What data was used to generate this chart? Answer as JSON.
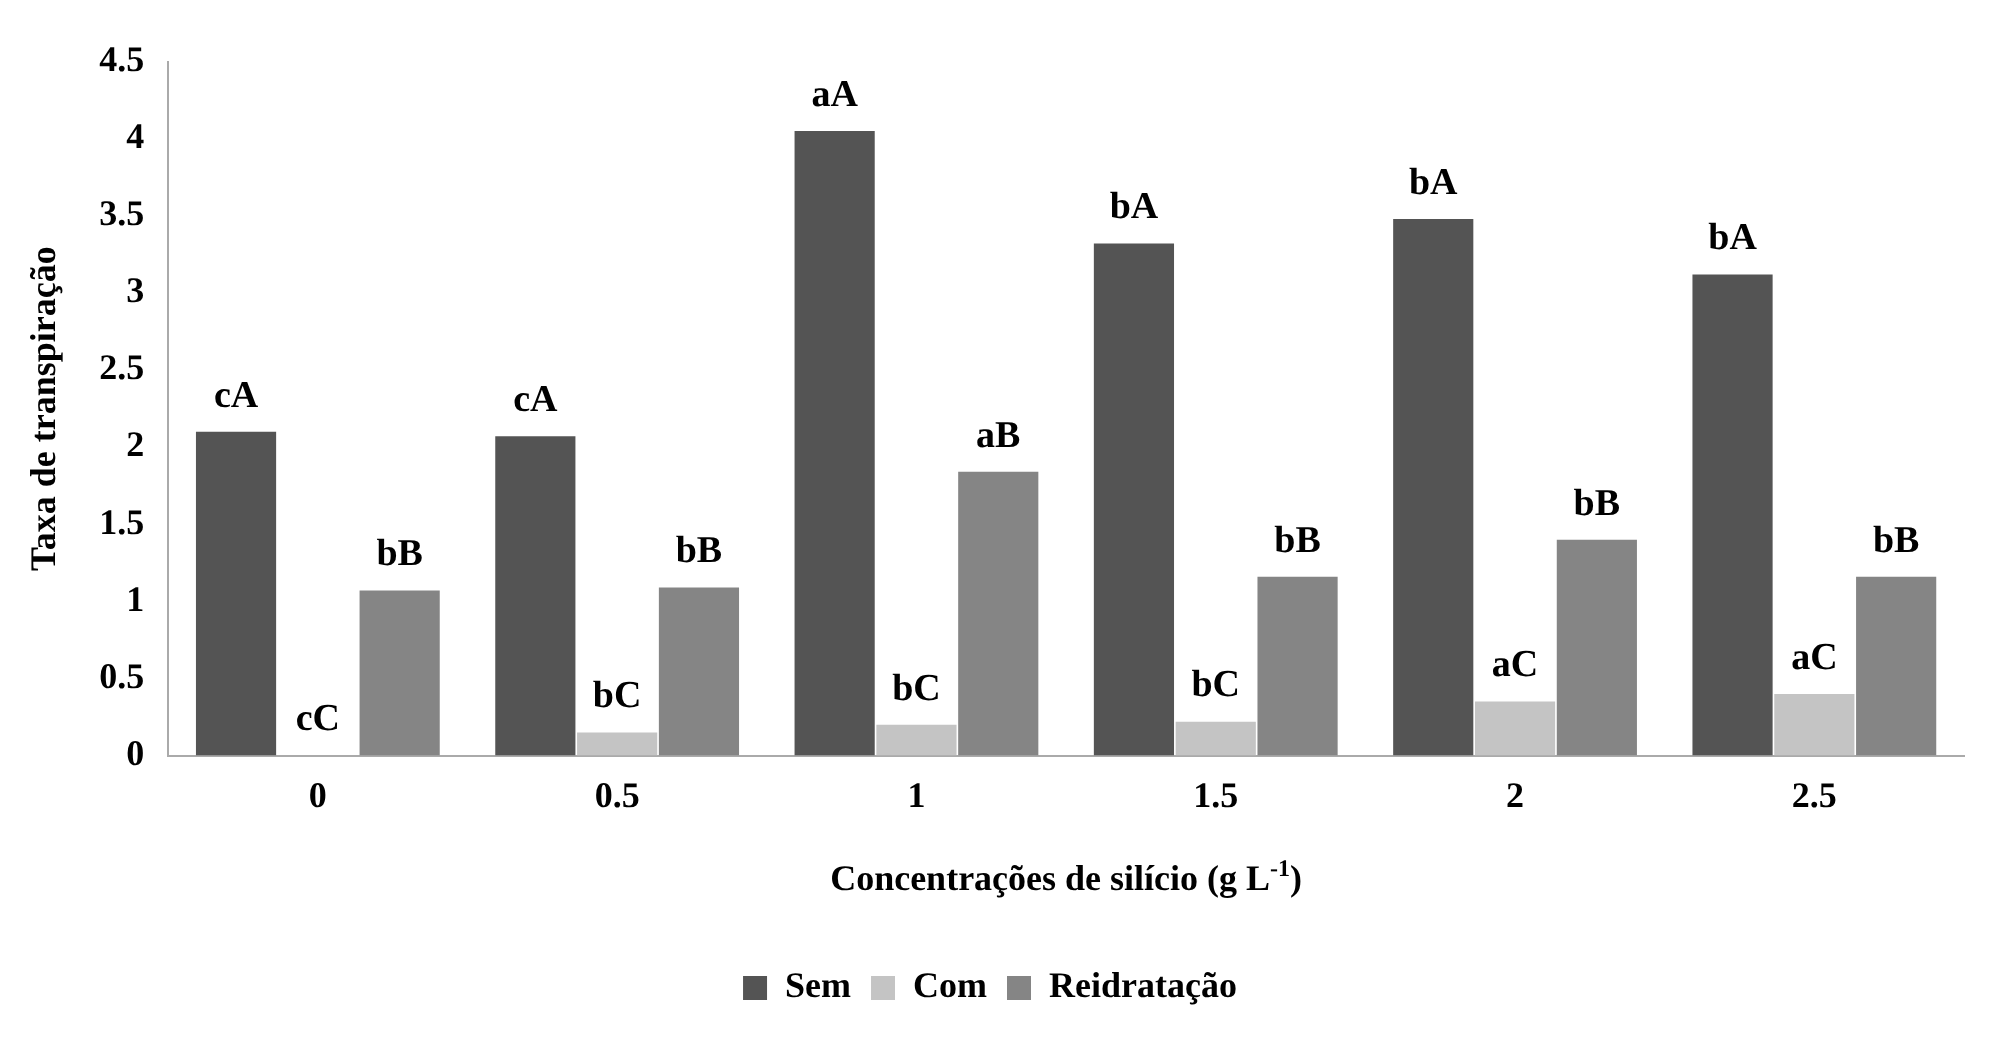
{
  "chart_data": {
    "type": "bar",
    "xlabel": "Concentrações de silício (g L$^{-1}$)",
    "ylabel": "Taxa de transpiração",
    "categories": [
      "0",
      "0.5",
      "1",
      "1.5",
      "2",
      "2.5"
    ],
    "series": [
      {
        "name": "Sem",
        "color": "#545454",
        "values": [
          2.1,
          2.07,
          4.05,
          3.32,
          3.48,
          3.12
        ],
        "value_labels": [
          "cA",
          "cA",
          "aA",
          "bA",
          "bA",
          "bA"
        ]
      },
      {
        "name": "Com",
        "color": "#c4c4c4",
        "values": [
          0,
          0.15,
          0.2,
          0.22,
          0.35,
          0.4
        ],
        "value_labels": [
          "cC",
          "bC",
          "bC",
          "bC",
          "aC",
          "aC"
        ]
      },
      {
        "name": "Reidratação",
        "color": "#858585",
        "values": [
          1.07,
          1.09,
          1.84,
          1.16,
          1.4,
          1.16
        ],
        "value_labels": [
          "bB",
          "bB",
          "aB",
          "bB",
          "bB",
          "bB"
        ]
      }
    ],
    "ylim": [
      0,
      4.5
    ],
    "yticks": [
      0,
      0.5,
      1,
      1.5,
      2,
      2.5,
      3,
      3.5,
      4,
      4.5
    ],
    "grid": false,
    "legend": "bottom"
  }
}
